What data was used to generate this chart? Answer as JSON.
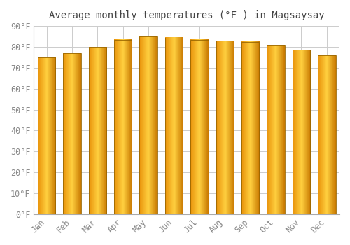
{
  "title": "Average monthly temperatures (°F ) in Magsaysay",
  "months": [
    "Jan",
    "Feb",
    "Mar",
    "Apr",
    "May",
    "Jun",
    "Jul",
    "Aug",
    "Sep",
    "Oct",
    "Nov",
    "Dec"
  ],
  "values": [
    75,
    77,
    80,
    83.5,
    85,
    84.5,
    83.5,
    83,
    82.5,
    80.5,
    78.5,
    76
  ],
  "bar_color_left": "#E8920A",
  "bar_color_center": "#FFD040",
  "bar_color_right": "#C87800",
  "bar_edge_color": "#996600",
  "background_color": "#FFFFFF",
  "plot_bg_color": "#FFFFFF",
  "grid_color": "#CCCCCC",
  "ylim": [
    0,
    90
  ],
  "yticks": [
    0,
    10,
    20,
    30,
    40,
    50,
    60,
    70,
    80,
    90
  ],
  "ytick_labels": [
    "0°F",
    "10°F",
    "20°F",
    "30°F",
    "40°F",
    "50°F",
    "60°F",
    "70°F",
    "80°F",
    "90°F"
  ],
  "title_fontsize": 10,
  "tick_fontsize": 8.5,
  "title_color": "#444444",
  "tick_color": "#888888",
  "figsize": [
    5.0,
    3.5
  ],
  "dpi": 100,
  "bar_width": 0.7
}
